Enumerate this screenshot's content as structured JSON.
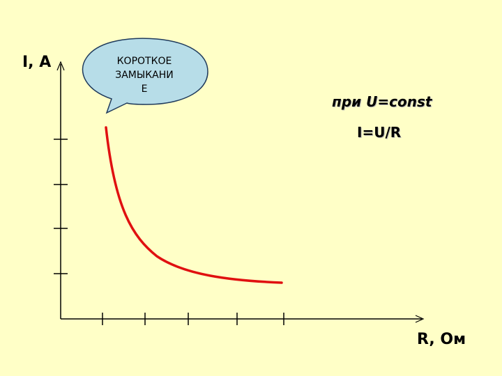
{
  "axes": {
    "y_label": "I, A",
    "x_label": "R, Ом"
  },
  "callout": {
    "line1": "КОРОТКОЕ",
    "line2": "ЗАМЫКАНИ",
    "line3": "Е"
  },
  "condition": "при U=const",
  "formula": "I=U/R",
  "colors": {
    "background": "#ffffc7",
    "curve": "#e01010",
    "bubble_fill": "#b7dde8",
    "bubble_stroke": "#1f3a5c"
  },
  "curve": {
    "relation": "I=U/R"
  }
}
